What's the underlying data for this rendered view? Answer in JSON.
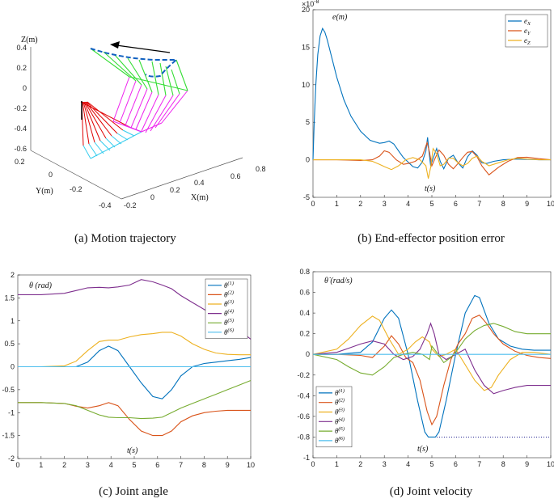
{
  "colors": {
    "blue": "#0072BD",
    "orange": "#D95319",
    "yellow": "#EDB120",
    "purple": "#7E2F8E",
    "green": "#77AC30",
    "cyan": "#4DBEEE",
    "red": "#E00000",
    "magenta": "#EE22EE",
    "lime": "#33DD33",
    "navy": "#000080"
  },
  "chart_data": [
    {
      "id": "a",
      "type": "scatter",
      "title": "Motion trajectory",
      "caption": "(a)  Motion trajectory",
      "xlabel": "X(m)",
      "ylabel": "Y(m)",
      "zlabel": "Z(m)",
      "x_ticks": [
        "-0.2",
        "0",
        "0.2",
        "0.4",
        "0.6",
        "0.8"
      ],
      "y_ticks": [
        "-0.4",
        "-0.2",
        "0",
        "0.2"
      ],
      "z_ticks": [
        "0.4",
        "0.2",
        "0",
        "-0.2",
        "-0.4",
        "-0.6"
      ],
      "annotation": "motion direction arrow (toward -X)"
    },
    {
      "id": "b",
      "type": "line",
      "title": "End-effector position error",
      "caption": "(b)  End-effector position error",
      "ylabel": "e(m)",
      "xlabel": "t(s)",
      "exponent": "×10",
      "exponent_power": "-8",
      "xlim": [
        0,
        10
      ],
      "ylim": [
        -5,
        20
      ],
      "xticks": [
        "0",
        "1",
        "2",
        "3",
        "4",
        "5",
        "6",
        "7",
        "8",
        "9",
        "10"
      ],
      "yticks": [
        "-5",
        "0",
        "5",
        "10",
        "15",
        "20"
      ],
      "legend": [
        "e_X",
        "e_Y",
        "e_Z"
      ],
      "legend_display": {
        "base": "e",
        "subs": [
          "X",
          "Y",
          "Z"
        ]
      },
      "series": [
        {
          "name": "e_X",
          "color": "blue",
          "x": [
            0,
            0.05,
            0.12,
            0.2,
            0.3,
            0.4,
            0.5,
            0.6,
            0.8,
            1.0,
            1.3,
            1.6,
            2.0,
            2.4,
            2.8,
            3.0,
            3.2,
            3.4,
            3.6,
            3.8,
            4.0,
            4.2,
            4.4,
            4.6,
            4.75,
            4.82,
            4.88,
            4.95,
            5.05,
            5.2,
            5.35,
            5.5,
            5.7,
            5.9,
            6.1,
            6.3,
            6.5,
            6.7,
            6.9,
            7.1,
            7.3,
            7.6,
            8.0,
            8.5,
            9.0,
            9.5,
            10
          ],
          "y": [
            0,
            5,
            10,
            14,
            16.5,
            17.5,
            17,
            16,
            13.5,
            11,
            8,
            5.8,
            3.8,
            2.6,
            2.2,
            2.3,
            2.5,
            2.1,
            1.2,
            0.3,
            -0.3,
            -0.9,
            -1.1,
            -0.3,
            1.2,
            3.0,
            1.0,
            -0.8,
            0.2,
            1.5,
            -0.2,
            -1.2,
            0.2,
            0.6,
            -0.4,
            -1.1,
            0.4,
            1.2,
            0.6,
            -0.4,
            -0.5,
            -0.2,
            0.0,
            0.1,
            0.05,
            0.0,
            0.0
          ]
        },
        {
          "name": "e_Y",
          "color": "orange",
          "x": [
            0,
            1,
            2,
            2.5,
            2.8,
            3.0,
            3.2,
            3.5,
            3.8,
            4.0,
            4.3,
            4.6,
            4.8,
            4.9,
            5.0,
            5.15,
            5.3,
            5.5,
            5.7,
            5.9,
            6.1,
            6.3,
            6.5,
            6.7,
            6.9,
            7.1,
            7.4,
            7.8,
            8.2,
            8.6,
            9.0,
            9.5,
            10
          ],
          "y": [
            0,
            0,
            -0.1,
            0.0,
            0.5,
            1.2,
            1.0,
            0.0,
            -0.6,
            -0.5,
            -0.2,
            0.5,
            2.3,
            1.0,
            -0.8,
            0.3,
            1.3,
            0.6,
            -0.6,
            -1.2,
            -0.5,
            0.3,
            1.0,
            1.1,
            0.4,
            -0.8,
            -2.0,
            -1.0,
            -0.2,
            0.3,
            0.35,
            0.15,
            0.0
          ]
        },
        {
          "name": "e_Z",
          "color": "yellow",
          "x": [
            0,
            1,
            2,
            2.5,
            2.8,
            3.0,
            3.3,
            3.6,
            3.9,
            4.2,
            4.5,
            4.75,
            4.85,
            4.95,
            5.05,
            5.2,
            5.35,
            5.5,
            5.7,
            5.9,
            6.1,
            6.3,
            6.5,
            6.7,
            6.9,
            7.1,
            7.4,
            7.8,
            8.2,
            8.6,
            9.0,
            9.5,
            10
          ],
          "y": [
            0,
            0,
            0,
            -0.2,
            -0.6,
            -0.9,
            -1.3,
            -0.8,
            0.0,
            0.3,
            0.0,
            -0.8,
            -2.5,
            -1.0,
            1.5,
            0.8,
            -0.8,
            -0.6,
            0.2,
            0.2,
            -0.4,
            -0.8,
            -0.5,
            0.2,
            0.5,
            -0.2,
            -0.8,
            -0.4,
            0.0,
            0.2,
            0.1,
            0.0,
            0.0
          ]
        }
      ]
    },
    {
      "id": "c",
      "type": "line",
      "title": "Joint angle",
      "caption": "(c)  Joint angle",
      "ylabel": "θ (rad)",
      "xlabel": "t(s)",
      "xlim": [
        0,
        10
      ],
      "ylim": [
        -2,
        2
      ],
      "xticks": [
        "0",
        "1",
        "2",
        "3",
        "4",
        "5",
        "6",
        "7",
        "8",
        "9",
        "10"
      ],
      "yticks": [
        "-2",
        "-1.5",
        "-1",
        "-0.5",
        "0",
        "0.5",
        "1",
        "1.5",
        "2"
      ],
      "legend": [
        "θ(1)",
        "θ(2)",
        "θ(3)",
        "θ(4)",
        "θ(5)",
        "θ(6)"
      ],
      "legend_display": {
        "base": "θ",
        "sups": [
          "(1)",
          "(2)",
          "(3)",
          "(4)",
          "(5)",
          "(6)"
        ]
      },
      "series": [
        {
          "name": "θ(1)",
          "color": "blue",
          "x": [
            0,
            1,
            2,
            2.5,
            3,
            3.5,
            3.9,
            4.3,
            4.8,
            5.3,
            5.8,
            6.2,
            6.6,
            7.0,
            7.5,
            8.0,
            8.5,
            9.0,
            9.5,
            10
          ],
          "y": [
            0,
            0,
            0,
            0,
            0.1,
            0.35,
            0.45,
            0.35,
            0.0,
            -0.35,
            -0.65,
            -0.7,
            -0.5,
            -0.2,
            0.0,
            0.07,
            0.1,
            0.13,
            0.16,
            0.2
          ]
        },
        {
          "name": "θ(2)",
          "color": "orange",
          "x": [
            0,
            1,
            2,
            2.5,
            3,
            3.5,
            3.9,
            4.3,
            4.8,
            5.3,
            5.8,
            6.2,
            6.6,
            7.0,
            7.5,
            8.0,
            8.5,
            9.0,
            9.5,
            10
          ],
          "y": [
            -0.78,
            -0.78,
            -0.8,
            -0.86,
            -0.9,
            -0.85,
            -0.78,
            -0.85,
            -1.15,
            -1.4,
            -1.5,
            -1.5,
            -1.4,
            -1.2,
            -1.07,
            -1.0,
            -0.97,
            -0.95,
            -0.95,
            -0.95
          ]
        },
        {
          "name": "θ(3)",
          "color": "yellow",
          "x": [
            0,
            1,
            2,
            2.5,
            3,
            3.5,
            3.9,
            4.3,
            4.8,
            5.3,
            5.8,
            6.2,
            6.6,
            7.0,
            7.5,
            8.0,
            8.5,
            9.0,
            9.5,
            10
          ],
          "y": [
            0,
            0,
            0.02,
            0.12,
            0.35,
            0.55,
            0.58,
            0.58,
            0.65,
            0.7,
            0.72,
            0.75,
            0.75,
            0.67,
            0.5,
            0.38,
            0.3,
            0.27,
            0.26,
            0.26
          ]
        },
        {
          "name": "θ(4)",
          "color": "purple",
          "x": [
            0,
            1,
            2,
            2.5,
            3,
            3.5,
            3.9,
            4.3,
            4.8,
            5.3,
            5.8,
            6.2,
            6.6,
            7.0,
            7.5,
            8.0,
            8.5,
            9.0,
            9.5,
            10
          ],
          "y": [
            1.57,
            1.57,
            1.6,
            1.66,
            1.72,
            1.73,
            1.72,
            1.74,
            1.78,
            1.9,
            1.85,
            1.78,
            1.7,
            1.55,
            1.4,
            1.25,
            1.1,
            0.95,
            0.8,
            0.6
          ]
        },
        {
          "name": "θ(5)",
          "color": "green",
          "x": [
            0,
            1,
            2,
            2.5,
            3,
            3.5,
            3.9,
            4.3,
            4.8,
            5.3,
            5.8,
            6.2,
            6.6,
            7.0,
            7.5,
            8.0,
            8.5,
            9.0,
            9.5,
            10
          ],
          "y": [
            -0.78,
            -0.78,
            -0.8,
            -0.85,
            -0.95,
            -1.05,
            -1.1,
            -1.11,
            -1.11,
            -1.13,
            -1.12,
            -1.1,
            -1.0,
            -0.9,
            -0.8,
            -0.7,
            -0.6,
            -0.5,
            -0.4,
            -0.3
          ]
        },
        {
          "name": "θ(6)",
          "color": "cyan",
          "x": [
            0,
            10
          ],
          "y": [
            0,
            0
          ]
        }
      ]
    },
    {
      "id": "d",
      "type": "line",
      "title": "Joint velocity",
      "caption": "(d)  Joint velocity",
      "ylabel": "θ̇ (rad/s)",
      "xlabel": "t(s)",
      "xlim": [
        0,
        10
      ],
      "ylim": [
        -1,
        0.8
      ],
      "xticks": [
        "0",
        "1",
        "2",
        "3",
        "4",
        "5",
        "6",
        "7",
        "8",
        "9",
        "10"
      ],
      "yticks": [
        "-1",
        "-0.8",
        "-0.6",
        "-0.4",
        "-0.2",
        "0",
        "0.2",
        "0.4",
        "0.6",
        "0.8"
      ],
      "legend": [
        "θ̇(1)",
        "θ̇(2)",
        "θ̇(3)",
        "θ̇(4)",
        "θ̇(5)",
        "θ̇(6)"
      ],
      "legend_display": {
        "base": "θ̇",
        "sups": [
          "(1)",
          "(2)",
          "(3)",
          "(4)",
          "(5)",
          "(6)"
        ]
      },
      "reference_line": {
        "y": -0.8,
        "x": [
          5,
          10
        ],
        "style": "dotted"
      },
      "series": [
        {
          "name": "θ̇(1)",
          "color": "blue",
          "x": [
            0,
            1,
            2,
            2.5,
            3,
            3.3,
            3.6,
            4.0,
            4.4,
            4.7,
            4.85,
            5.0,
            5.15,
            5.3,
            5.6,
            6.0,
            6.4,
            6.8,
            7.0,
            7.4,
            7.8,
            8.3,
            8.8,
            9.3,
            10
          ],
          "y": [
            0,
            0,
            0.02,
            0.12,
            0.35,
            0.43,
            0.35,
            0.0,
            -0.45,
            -0.75,
            -0.8,
            -0.8,
            -0.8,
            -0.75,
            -0.45,
            0.0,
            0.4,
            0.57,
            0.55,
            0.3,
            0.15,
            0.08,
            0.05,
            0.04,
            0.04
          ]
        },
        {
          "name": "θ̇(2)",
          "color": "orange",
          "x": [
            0,
            1,
            2,
            2.5,
            3,
            3.3,
            3.6,
            3.9,
            4.2,
            4.5,
            4.8,
            5.0,
            5.2,
            5.5,
            5.8,
            6.1,
            6.4,
            6.7,
            7.0,
            7.3,
            7.6,
            8.0,
            8.5,
            9.0,
            9.5,
            10
          ],
          "y": [
            0,
            0,
            -0.01,
            -0.03,
            0.08,
            0.18,
            0.1,
            -0.03,
            -0.08,
            -0.25,
            -0.55,
            -0.68,
            -0.6,
            -0.3,
            -0.05,
            0.1,
            0.2,
            0.35,
            0.38,
            0.3,
            0.2,
            0.1,
            0.03,
            -0.01,
            -0.03,
            -0.04
          ]
        },
        {
          "name": "θ̇(3)",
          "color": "yellow",
          "x": [
            0,
            1,
            1.5,
            2,
            2.5,
            2.8,
            3.2,
            3.6,
            4.0,
            4.3,
            4.6,
            4.9,
            5.0,
            5.3,
            5.6,
            6.0,
            6.4,
            6.8,
            7.2,
            7.5,
            7.8,
            8.3,
            8.8,
            9.3,
            10
          ],
          "y": [
            0,
            0.05,
            0.15,
            0.28,
            0.37,
            0.33,
            0.15,
            0.0,
            0.05,
            0.12,
            0.17,
            0.12,
            0.05,
            -0.02,
            0.0,
            0.05,
            -0.1,
            -0.25,
            -0.35,
            -0.32,
            -0.2,
            -0.05,
            0.02,
            0.02,
            0.0
          ]
        },
        {
          "name": "θ̇(4)",
          "color": "purple",
          "x": [
            0,
            1,
            1.5,
            2,
            2.5,
            3.0,
            3.4,
            3.8,
            4.2,
            4.5,
            4.8,
            4.95,
            5.1,
            5.3,
            5.6,
            6.0,
            6.4,
            6.8,
            7.2,
            7.6,
            8.0,
            8.5,
            9.0,
            9.5,
            10
          ],
          "y": [
            0,
            0.02,
            0.06,
            0.1,
            0.13,
            0.1,
            0.0,
            -0.05,
            -0.02,
            0.05,
            0.2,
            0.3,
            0.2,
            0.0,
            -0.05,
            0.0,
            0.05,
            -0.15,
            -0.3,
            -0.38,
            -0.35,
            -0.32,
            -0.3,
            -0.3,
            -0.3
          ]
        },
        {
          "name": "θ̇(5)",
          "color": "green",
          "x": [
            0,
            1,
            1.5,
            2,
            2.5,
            3.0,
            3.4,
            3.8,
            4.2,
            4.6,
            4.9,
            5.0,
            5.2,
            5.5,
            5.8,
            6.1,
            6.4,
            6.8,
            7.2,
            7.6,
            8.0,
            8.5,
            9.0,
            9.5,
            10
          ],
          "y": [
            0,
            -0.05,
            -0.12,
            -0.18,
            -0.2,
            -0.12,
            -0.03,
            0.0,
            0.02,
            0.0,
            -0.05,
            0.08,
            0.02,
            -0.08,
            -0.03,
            0.05,
            0.15,
            0.23,
            0.28,
            0.3,
            0.27,
            0.22,
            0.2,
            0.2,
            0.2
          ]
        },
        {
          "name": "θ̇(6)",
          "color": "cyan",
          "x": [
            0,
            10
          ],
          "y": [
            0,
            0
          ]
        }
      ]
    }
  ]
}
